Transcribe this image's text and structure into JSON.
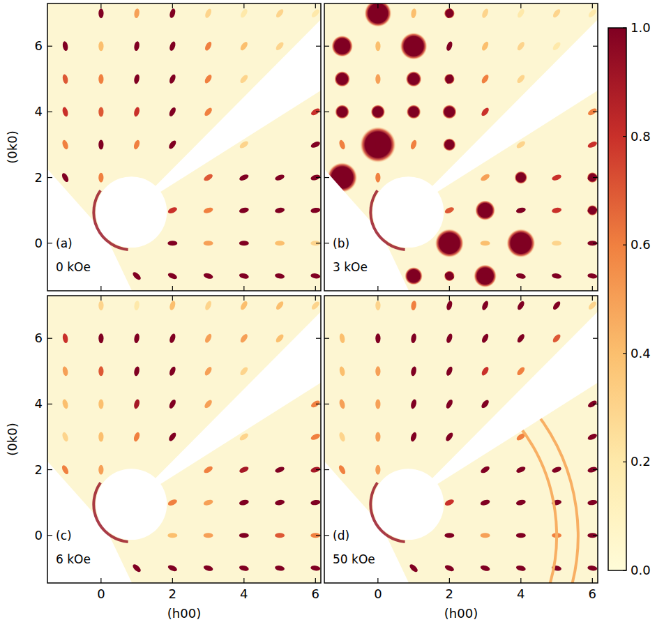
{
  "chart_data": [
    {
      "type": "scatter",
      "title": "(a)",
      "subtitle": "0 kOe",
      "ylabel": "(0k0)",
      "x": [
        -1,
        0,
        1,
        2,
        3,
        4,
        5,
        6
      ],
      "y": [
        -1,
        0,
        1,
        2,
        3,
        4,
        5,
        6,
        7
      ],
      "values": [
        [
          null,
          null,
          1,
          1,
          1,
          1,
          1,
          1
        ],
        [
          null,
          null,
          null,
          1,
          0.5,
          1,
          0.4,
          0.3
        ],
        [
          null,
          null,
          null,
          0.8,
          0.6,
          1,
          1,
          1
        ],
        [
          1,
          0.6,
          null,
          null,
          0.7,
          1,
          1,
          1
        ],
        [
          0.6,
          1,
          0.6,
          1,
          null,
          0.3,
          null,
          1
        ],
        [
          0.8,
          0.7,
          0.8,
          1,
          0.6,
          null,
          null,
          0.8
        ],
        [
          0.7,
          0.6,
          1,
          1,
          0.6,
          0.3,
          null,
          null
        ],
        [
          1,
          0.4,
          1,
          1,
          0.6,
          0.4,
          0.3,
          null
        ],
        [
          null,
          1,
          0.5,
          1,
          0.3,
          0.2,
          0.3,
          0.2
        ]
      ],
      "xlim": [
        -1.5,
        6.15
      ],
      "ylim": [
        -1.45,
        7.3
      ],
      "xticks": [
        0,
        2,
        4,
        6
      ],
      "yticks": [
        0,
        2,
        4,
        6
      ],
      "tick_labels": "y"
    },
    {
      "type": "scatter",
      "title": "(b)",
      "subtitle": "3 kOe",
      "x": [
        -1,
        0,
        1,
        2,
        3,
        4,
        5,
        6
      ],
      "y": [
        -1,
        0,
        1,
        2,
        3,
        4,
        5,
        6,
        7
      ],
      "values": [
        [
          null,
          null,
          1,
          1,
          1,
          1,
          1,
          1
        ],
        [
          null,
          null,
          null,
          1,
          0.4,
          1,
          0.3,
          1
        ],
        [
          null,
          null,
          null,
          0.7,
          1,
          1,
          0.8,
          1
        ],
        [
          1,
          0.6,
          null,
          null,
          0.5,
          1,
          0.8,
          1
        ],
        [
          0.6,
          1,
          0.6,
          1,
          null,
          0.3,
          null,
          0.8
        ],
        [
          1,
          1,
          1,
          1,
          0.8,
          null,
          null,
          0.6
        ],
        [
          1,
          0.5,
          1,
          1,
          0.6,
          0.3,
          null,
          null
        ],
        [
          1,
          0.4,
          1,
          1,
          0.4,
          0.3,
          0.2,
          null
        ],
        [
          null,
          1,
          0.4,
          1,
          0.3,
          0.2,
          0.3,
          0.2
        ]
      ],
      "halos": [
        [
          null,
          null,
          0.25,
          0.15,
          0.32,
          null,
          null,
          null
        ],
        [
          null,
          null,
          null,
          0.4,
          null,
          0.4,
          null,
          null
        ],
        [
          null,
          null,
          null,
          null,
          0.28,
          null,
          null,
          0.15
        ],
        [
          0.42,
          null,
          null,
          null,
          null,
          0.18,
          null,
          0.15
        ],
        [
          null,
          0.5,
          null,
          0.18,
          null,
          null,
          null,
          null
        ],
        [
          0.2,
          0.2,
          0.2,
          0.2,
          null,
          null,
          null,
          null
        ],
        [
          0.22,
          null,
          0.22,
          0.15,
          null,
          null,
          null,
          null
        ],
        [
          0.3,
          null,
          0.38,
          null,
          null,
          null,
          null,
          null
        ],
        [
          null,
          0.38,
          null,
          0.15,
          null,
          null,
          null,
          null
        ]
      ],
      "xlim": [
        -1.5,
        6.15
      ],
      "ylim": [
        -1.45,
        7.3
      ],
      "xticks": [
        0,
        2,
        4,
        6
      ],
      "yticks": [
        0,
        2,
        4,
        6
      ],
      "tick_labels": false,
      "colorbar": {
        "range": [
          0,
          1
        ],
        "ticks": [
          {
            "value": 0,
            "label": "0.0"
          },
          0.2,
          0.4,
          0.6,
          0.8,
          {
            "value": 1,
            "label": "1.0"
          }
        ]
      }
    },
    {
      "type": "scatter",
      "title": "(c)",
      "subtitle": "6 kOe",
      "xlabel": "(h00)",
      "ylabel": "(0k0)",
      "x": [
        -1,
        0,
        1,
        2,
        3,
        4,
        5,
        6
      ],
      "y": [
        -1,
        0,
        1,
        2,
        3,
        4,
        5,
        6,
        7
      ],
      "values": [
        [
          null,
          null,
          1,
          1,
          1,
          1,
          1,
          1
        ],
        [
          null,
          null,
          null,
          0.4,
          0.5,
          1,
          0.7,
          0.6
        ],
        [
          null,
          null,
          null,
          0.6,
          0.5,
          1,
          1,
          1
        ],
        [
          0.6,
          0.5,
          null,
          null,
          0.6,
          0.9,
          1,
          0.9
        ],
        [
          0.3,
          0.4,
          0.6,
          1,
          null,
          0.3,
          null,
          0.6
        ],
        [
          0.4,
          0.4,
          0.9,
          1,
          0.5,
          null,
          null,
          0.6
        ],
        [
          0.5,
          0.7,
          1,
          1,
          0.5,
          0.3,
          null,
          null
        ],
        [
          0.8,
          1,
          1,
          1,
          0.5,
          0.5,
          0.4,
          null
        ],
        [
          null,
          0.3,
          0.2,
          0.4,
          0.3,
          0.4,
          0.4,
          0.3
        ]
      ],
      "xlim": [
        -1.5,
        6.15
      ],
      "ylim": [
        -1.45,
        7.3
      ],
      "xticks": [
        0,
        2,
        4,
        6
      ],
      "yticks": [
        0,
        2,
        4,
        6
      ]
    },
    {
      "type": "scatter",
      "title": "(d)",
      "subtitle": "50 kOe",
      "xlabel": "(h00)",
      "x": [
        -1,
        0,
        1,
        2,
        3,
        4,
        5,
        6
      ],
      "y": [
        -1,
        0,
        1,
        2,
        3,
        4,
        5,
        6,
        7
      ],
      "values": [
        [
          null,
          null,
          1,
          1,
          1,
          1,
          1,
          1
        ],
        [
          null,
          null,
          null,
          1,
          0.5,
          1,
          0.6,
          1
        ],
        [
          null,
          null,
          null,
          0.8,
          1,
          1,
          1,
          1
        ],
        [
          0.6,
          0.5,
          null,
          null,
          1,
          1,
          1,
          1
        ],
        [
          0.3,
          0.5,
          1,
          1,
          null,
          0.6,
          null,
          1
        ],
        [
          0.5,
          0.5,
          1,
          1,
          1,
          null,
          null,
          1
        ],
        [
          0.4,
          0.5,
          1,
          1,
          0.8,
          0.6,
          null,
          null
        ],
        [
          0.4,
          1,
          1,
          1,
          1,
          1,
          0.7,
          null
        ],
        [
          null,
          0.3,
          0.6,
          1,
          1,
          1,
          1,
          0.3
        ]
      ],
      "rings": [
        5.0,
        5.6
      ],
      "ring_values": [
        0.45,
        0.45
      ],
      "xlim": [
        -1.5,
        6.15
      ],
      "ylim": [
        -1.45,
        7.3
      ],
      "xticks": [
        0,
        2,
        4,
        6
      ],
      "yticks": [
        0,
        2,
        4,
        6
      ],
      "tick_labels": "x"
    }
  ]
}
